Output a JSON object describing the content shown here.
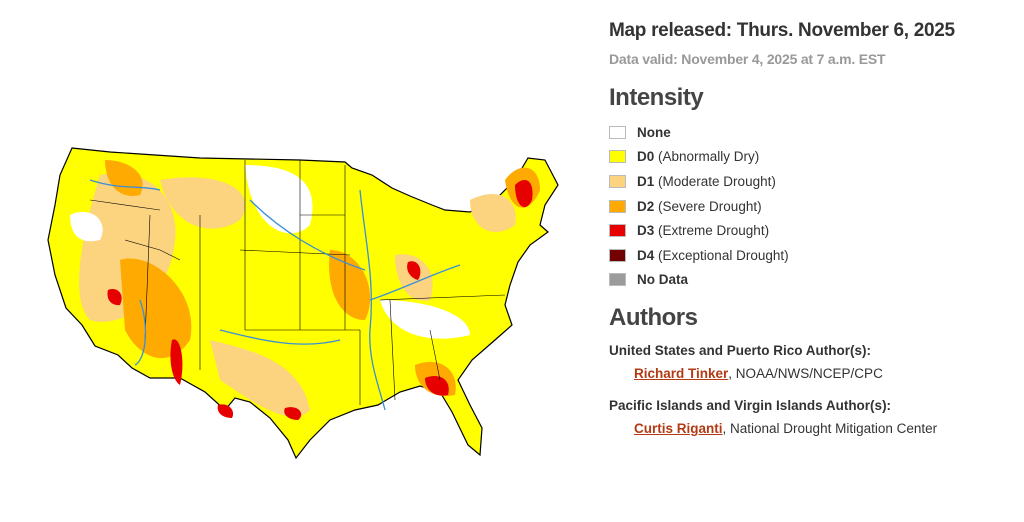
{
  "header": {
    "released": "Map released: Thurs. November 6, 2025",
    "valid": "Data valid: November 4, 2025 at 7 a.m. EST"
  },
  "legend": {
    "title": "Intensity",
    "items": [
      {
        "code": "None",
        "color": "#ffffff"
      },
      {
        "code": "D0",
        "label": "(Abnormally Dry)",
        "color": "#ffff00"
      },
      {
        "code": "D1",
        "label": "(Moderate Drought)",
        "color": "#fcd37f"
      },
      {
        "code": "D2",
        "label": "(Severe Drought)",
        "color": "#ffaa00"
      },
      {
        "code": "D3",
        "label": "(Extreme Drought)",
        "color": "#e60000"
      },
      {
        "code": "D4",
        "label": "(Exceptional Drought)",
        "color": "#730000"
      },
      {
        "code": "No Data",
        "color": "#9b9b9b"
      }
    ]
  },
  "authors": {
    "title": "Authors",
    "groups": [
      {
        "heading": "United States and Puerto Rico Author(s):",
        "name": "Richard Tinker",
        "affiliation": ", NOAA/NWS/NCEP/CPC"
      },
      {
        "heading": "Pacific Islands and Virgin Islands Author(s):",
        "name": "Curtis Riganti",
        "affiliation": ", National Drought Mitigation Center"
      }
    ]
  }
}
